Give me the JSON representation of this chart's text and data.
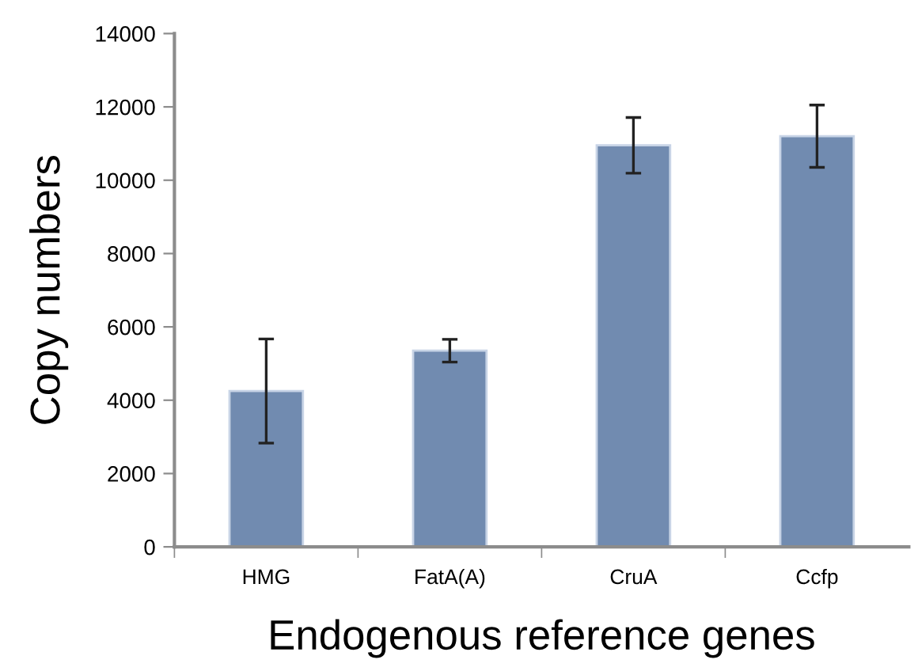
{
  "chart_data": {
    "type": "bar",
    "xlabel": "Endogenous reference genes",
    "ylabel": "Copy numbers",
    "categories": [
      "HMG",
      "FatA(A)",
      "CruA",
      "Ccfp"
    ],
    "values": [
      4250,
      5350,
      10950,
      11200
    ],
    "errors": [
      1420,
      310,
      760,
      850
    ],
    "color": "#718bb0",
    "ylim": [
      0,
      14000
    ],
    "yticks": [
      0,
      2000,
      4000,
      6000,
      8000,
      10000,
      12000,
      14000
    ],
    "grid": false,
    "legend": false
  }
}
